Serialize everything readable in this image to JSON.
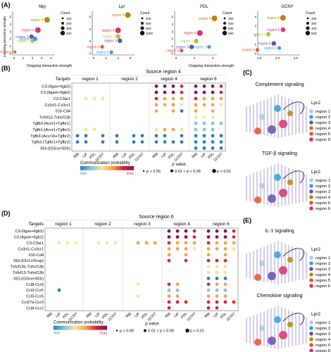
{
  "colors": {
    "region1": "#a6cee3",
    "region2": "#33a0e0",
    "region3": "#6a4fb0",
    "region4": "#b8860b",
    "region5": "#e8552d",
    "region6": "#d6336c",
    "lpr_green": "#a3c83a",
    "cmap": [
      "#2b7bba",
      "#7fc7d9",
      "#f2e59a",
      "#f7a24a",
      "#d7263d",
      "#8b0f5a"
    ]
  },
  "panelA": {
    "label": "(A)",
    "ylabel": "Incoming interaction strength",
    "xlabel": "Outgoing interaction strength",
    "legend_title": "Count",
    "plots": [
      {
        "title": "Mpj",
        "x_ticks": [
          "0",
          "1",
          "2",
          "3",
          "4"
        ],
        "y_ticks": [
          "0",
          "1",
          "2",
          "3",
          "4",
          "5"
        ],
        "legend_values": [
          "100",
          "200",
          "300",
          "400"
        ],
        "points": [
          {
            "label": "region 4",
            "x": 3.6,
            "y": 4.6,
            "size": 3,
            "color": "region4"
          },
          {
            "label": "region 6",
            "x": 2.6,
            "y": 3.2,
            "size": 3,
            "color": "region6"
          },
          {
            "label": "region 3",
            "x": 1.9,
            "y": 2.3,
            "size": 2,
            "color": "region3"
          },
          {
            "label": "region 2",
            "x": 2.3,
            "y": 2.0,
            "size": 2,
            "color": "region2"
          },
          {
            "label": "region 1",
            "x": 2.0,
            "y": 1.7,
            "size": 1,
            "color": "lpr_green"
          },
          {
            "label": "region 5",
            "x": 0.1,
            "y": 0.2,
            "size": 0,
            "color": "region5"
          }
        ]
      },
      {
        "title": "Lpr",
        "x_ticks": [
          "0",
          "2",
          "4",
          "6"
        ],
        "y_ticks": [
          "0",
          "2",
          "4",
          "6"
        ],
        "legend_values": [
          "400",
          "600",
          "800",
          "1000"
        ],
        "points": [
          {
            "label": "region 4",
            "x": 5.6,
            "y": 6.3,
            "size": 3,
            "color": "region4"
          },
          {
            "label": "region 6",
            "x": 4.0,
            "y": 3.8,
            "size": 3,
            "color": "region6"
          },
          {
            "label": "region 1",
            "x": 4.0,
            "y": 2.8,
            "size": 2,
            "color": "lpr_green"
          },
          {
            "label": "region 3",
            "x": 4.3,
            "y": 2.1,
            "size": 2,
            "color": "region3"
          },
          {
            "label": "region 5",
            "x": 1.4,
            "y": 1.1,
            "size": 1,
            "color": "region5"
          },
          {
            "label": "region 2",
            "x": 2.9,
            "y": 0.2,
            "size": 1,
            "color": "region2"
          }
        ]
      },
      {
        "title": "PDL",
        "x_ticks": [
          "0",
          "2",
          "4"
        ],
        "y_ticks": [
          "0",
          "1",
          "2",
          "3",
          "4",
          "5"
        ],
        "legend_values": [
          "300",
          "400",
          "500",
          "600"
        ],
        "points": [
          {
            "label": "region 4",
            "x": 4.2,
            "y": 4.8,
            "size": 3,
            "color": "region4"
          },
          {
            "label": "region 6",
            "x": 2.6,
            "y": 2.8,
            "size": 3,
            "color": "region6"
          },
          {
            "label": "region 1",
            "x": 2.2,
            "y": 1.7,
            "size": 2,
            "color": "lpr_green"
          },
          {
            "label": "region 3",
            "x": 1.7,
            "y": 0.9,
            "size": 2,
            "color": "region3"
          },
          {
            "label": "region 2",
            "x": 3.6,
            "y": 0.9,
            "size": 1,
            "color": "region2"
          },
          {
            "label": "region 5",
            "x": 0.6,
            "y": 0.4,
            "size": 1,
            "color": "region5"
          }
        ]
      },
      {
        "title": "GCNY",
        "x_ticks": [
          "1.0",
          "2.0",
          "3.0"
        ],
        "y_ticks": [
          "0",
          "1",
          "2",
          "3",
          "4"
        ],
        "legend_values": [
          "200",
          "300",
          "400",
          "500"
        ],
        "points": [
          {
            "label": "region 4",
            "x": 2.3,
            "y": 3.9,
            "size": 3,
            "color": "region4"
          },
          {
            "label": "region 6",
            "x": 2.3,
            "y": 2.6,
            "size": 2,
            "color": "region6"
          },
          {
            "label": "region 1",
            "x": 1.5,
            "y": 2.1,
            "size": 2,
            "color": "lpr_green"
          },
          {
            "label": "region 3",
            "x": 1.8,
            "y": 1.1,
            "size": 2,
            "color": "region3"
          },
          {
            "label": "region 2",
            "x": 2.1,
            "y": 0.6,
            "size": 1,
            "color": "region2"
          },
          {
            "label": "region 5",
            "x": 0.9,
            "y": 0.4,
            "size": 1,
            "color": "region5"
          }
        ]
      }
    ]
  },
  "panelB": {
    "label": "(B)",
    "source": "Source  region 4",
    "targets_label": "Targets",
    "target_groups": [
      "region 1",
      "region 2",
      "region 4",
      "region 6"
    ],
    "columns": [
      "Mpj",
      "Lpr",
      "PDL",
      "GCNY"
    ],
    "rows": [
      "C3-(Itgax+Itgb2)",
      "C3-(Itgam+Itgb2)",
      "C3-C3ar1",
      "Cx3cl1-Cx3cr1",
      "Il16-Cd4",
      "Tnfsf13-Tnfrsf13b",
      "Tgfb3-(Acvr1+Tgfbr1)",
      "Tgfb1-(Acvr1+Tgfbr1)",
      "Tgfb3-(Acvr1b+Tgfbr2)",
      "Tgfb3-(Tgfbr1+Tgfbr2)",
      "Il15-(Il15ra+Il2rb)"
    ],
    "cells": [
      [
        0,
        0,
        null,
        null,
        null,
        null,
        null,
        null,
        null,
        null,
        null,
        null,
        null,
        null,
        null,
        null
      ],
      [
        0,
        0,
        null,
        null,
        null,
        null,
        null,
        null,
        null,
        null,
        null,
        null,
        null,
        null,
        null,
        null
      ],
      [
        0,
        0,
        null,
        null,
        null,
        null,
        null,
        null,
        null,
        null,
        null,
        null,
        null,
        null,
        null,
        null
      ],
      [
        0,
        0,
        null,
        null,
        null,
        null,
        null,
        null,
        null,
        null,
        null,
        null,
        null,
        null,
        null,
        null
      ],
      [
        0,
        0,
        null,
        null,
        null,
        null,
        null,
        null,
        null,
        null,
        null,
        null,
        null,
        null,
        null,
        null
      ],
      [
        0,
        0,
        null,
        null,
        null,
        null,
        null,
        null,
        null,
        null,
        null,
        null,
        null,
        null,
        null,
        null
      ],
      [
        0,
        0,
        null,
        null,
        null,
        null,
        null,
        null,
        null,
        null,
        null,
        null,
        null,
        null,
        null,
        null
      ],
      [
        0,
        0,
        null,
        null,
        null,
        null,
        null,
        null,
        null,
        null,
        null,
        null,
        null,
        null,
        null,
        null
      ],
      [
        0,
        0,
        null,
        null,
        null,
        null,
        null,
        null,
        null,
        null,
        null,
        null,
        null,
        null,
        null,
        null
      ],
      [
        0,
        0,
        null,
        null,
        null,
        null,
        null,
        null,
        null,
        null,
        null,
        null,
        null,
        null,
        null,
        null
      ],
      [
        0,
        0,
        null,
        null,
        null,
        null,
        null,
        null,
        null,
        null,
        null,
        null,
        null,
        null,
        null,
        null
      ]
    ],
    "dots": [
      [
        null,
        null,
        null,
        null,
        null,
        null,
        null,
        null,
        5,
        5,
        5,
        4,
        5,
        5,
        5,
        4
      ],
      [
        null,
        null,
        null,
        null,
        null,
        null,
        null,
        null,
        5,
        5,
        5,
        4,
        5,
        5,
        5,
        4
      ],
      [
        null,
        2,
        2,
        2,
        null,
        null,
        null,
        null,
        4,
        3,
        3,
        3,
        4,
        3,
        3,
        3
      ],
      [
        null,
        null,
        null,
        null,
        null,
        null,
        null,
        null,
        3,
        3,
        3,
        2,
        3,
        3,
        3,
        2
      ],
      [
        null,
        null,
        null,
        null,
        null,
        null,
        null,
        null,
        3,
        null,
        3,
        0,
        3,
        null,
        3,
        null
      ],
      [
        null,
        null,
        null,
        null,
        null,
        null,
        null,
        null,
        null,
        null,
        null,
        null,
        2,
        2,
        2,
        null
      ],
      [
        null,
        null,
        null,
        null,
        null,
        null,
        null,
        null,
        null,
        null,
        null,
        null,
        1,
        1,
        1,
        1
      ],
      [
        null,
        2,
        2,
        null,
        null,
        null,
        null,
        null,
        2,
        3,
        3,
        2,
        1,
        1,
        1,
        null
      ],
      [
        0,
        0,
        null,
        0,
        0,
        null,
        0,
        0,
        0,
        0,
        null,
        0,
        0,
        0,
        0,
        0
      ],
      [
        0,
        0,
        null,
        0,
        0,
        null,
        0,
        0,
        0,
        0,
        0,
        0,
        0,
        0,
        0,
        0
      ],
      [
        null,
        null,
        null,
        null,
        null,
        null,
        null,
        null,
        null,
        null,
        null,
        null,
        0,
        0,
        0,
        0
      ]
    ],
    "legend_title": "Communication probability",
    "legend_min": "min",
    "legend_max": "max",
    "pvalue_title": "p value",
    "pvalue_labels": [
      "p > 0.05",
      "0.01 < p < 0.05",
      "p < 0.01"
    ]
  },
  "panelC": {
    "label": "(C)",
    "maps": [
      {
        "title": "Complement signaling",
        "legend_title": "Lpr2"
      },
      {
        "title": "TGF-β signaling",
        "legend_title": "Lpr2"
      }
    ],
    "regions": [
      "region 1",
      "region 2",
      "region 3",
      "region 4",
      "region 5",
      "region 6"
    ]
  },
  "panelD": {
    "label": "(D)",
    "source": "Source region 6",
    "targets_label": "Targets",
    "target_groups": [
      "region 1",
      "region 2",
      "region 3",
      "region 4",
      "region 6"
    ],
    "columns": [
      "Mpj",
      "Lpr",
      "PDL",
      "GCNY"
    ],
    "rows": [
      "C3-(Itgax+Itgb2)",
      "C3-(Itgam+Itgb2)",
      "C3-C3ar1",
      "Cx3cl1-Cx3cr1",
      "Il16-Cd4",
      "Il1b-(Il1r1+Il1rap)",
      "Tnfsf13b-Tnfrsf13b",
      "Tnfsf13-Tnfrsf13b",
      "Il15-(Il15ra+Il2rb)",
      "Ccl8-Ccr5",
      "Ccl3-Ccr5",
      "Ccl5-Ccr5",
      "Ccl27a-Ccr3",
      "Ccl8-Ccr2"
    ],
    "dots": [
      [
        null,
        null,
        null,
        null,
        null,
        null,
        null,
        null,
        null,
        null,
        null,
        null,
        5,
        5,
        5,
        4,
        5,
        5,
        5,
        4
      ],
      [
        null,
        null,
        null,
        null,
        null,
        null,
        null,
        null,
        null,
        null,
        null,
        null,
        5,
        5,
        5,
        4,
        5,
        5,
        5,
        4
      ],
      [
        null,
        2,
        2,
        2,
        null,
        2,
        2,
        2,
        null,
        3,
        3,
        3,
        4,
        3,
        3,
        3,
        4,
        3,
        3,
        3
      ],
      [
        null,
        null,
        null,
        null,
        null,
        null,
        null,
        null,
        null,
        null,
        null,
        null,
        3,
        3,
        3,
        2,
        3,
        3,
        3,
        2
      ],
      [
        null,
        null,
        null,
        null,
        null,
        null,
        null,
        null,
        null,
        null,
        null,
        null,
        3,
        null,
        3,
        null,
        3,
        null,
        3,
        null
      ],
      [
        null,
        null,
        null,
        null,
        null,
        null,
        null,
        null,
        null,
        null,
        null,
        null,
        4,
        null,
        4,
        null,
        4,
        4,
        4,
        null
      ],
      [
        null,
        null,
        null,
        null,
        null,
        null,
        null,
        null,
        null,
        null,
        null,
        null,
        null,
        null,
        null,
        null,
        2,
        2,
        2,
        null
      ],
      [
        null,
        null,
        null,
        null,
        null,
        null,
        null,
        null,
        null,
        null,
        null,
        null,
        null,
        null,
        null,
        null,
        2,
        2,
        2,
        null
      ],
      [
        null,
        null,
        null,
        null,
        null,
        null,
        null,
        null,
        null,
        null,
        null,
        null,
        null,
        null,
        null,
        null,
        0,
        0,
        0,
        null
      ],
      [
        null,
        null,
        null,
        null,
        null,
        null,
        null,
        null,
        null,
        2,
        null,
        null,
        4,
        3,
        null,
        null,
        4,
        3,
        3,
        null
      ],
      [
        null,
        0,
        null,
        null,
        null,
        null,
        null,
        null,
        null,
        null,
        null,
        null,
        1,
        1,
        null,
        null,
        1,
        1,
        1,
        null
      ],
      [
        null,
        null,
        null,
        null,
        null,
        null,
        null,
        null,
        null,
        2,
        null,
        null,
        3,
        3,
        null,
        null,
        3,
        3,
        3,
        null
      ],
      [
        null,
        null,
        null,
        null,
        null,
        null,
        null,
        null,
        null,
        null,
        null,
        null,
        4,
        4,
        4,
        null,
        4,
        4,
        4,
        4
      ],
      [
        null,
        null,
        null,
        null,
        null,
        null,
        null,
        null,
        null,
        null,
        null,
        null,
        4,
        null,
        null,
        null,
        4,
        4,
        null,
        null
      ]
    ],
    "legend_title": "Communication probability",
    "legend_min": "min",
    "legend_max": "max",
    "pvalue_title": "p value",
    "pvalue_labels": [
      "p > 0.05",
      "0.01 < p < 0.05",
      "p < 0.01"
    ]
  },
  "panelE": {
    "label": "(E)",
    "maps": [
      {
        "title": "IL-1 signaling",
        "legend_title": "Lpr2"
      },
      {
        "title": "Chemokine signaling",
        "legend_title": "Lpr2"
      }
    ],
    "regions": [
      "region 1",
      "region 2",
      "region 3",
      "region 4",
      "region 5",
      "region 6"
    ]
  }
}
